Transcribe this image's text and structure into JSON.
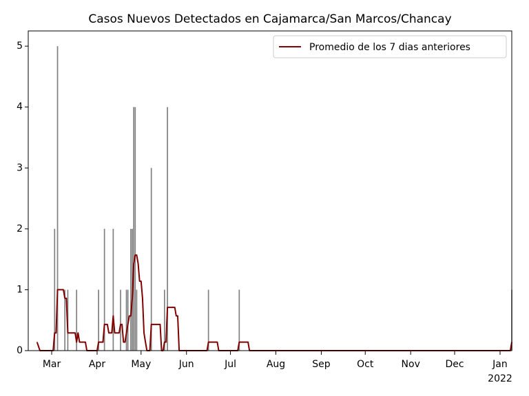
{
  "chart_data": {
    "type": "bar+line",
    "title": "Casos Nuevos Detectados en Cajamarca/San Marcos/Chancay",
    "xlim": [
      "2021-02-13",
      "2022-01-09"
    ],
    "xticks": [
      {
        "value": "2021-03-01",
        "label": "Mar"
      },
      {
        "value": "2021-04-01",
        "label": "Apr"
      },
      {
        "value": "2021-05-01",
        "label": "May"
      },
      {
        "value": "2021-06-01",
        "label": "Jun"
      },
      {
        "value": "2021-07-01",
        "label": "Jul"
      },
      {
        "value": "2021-08-01",
        "label": "Aug"
      },
      {
        "value": "2021-09-01",
        "label": "Sep"
      },
      {
        "value": "2021-10-01",
        "label": "Oct"
      },
      {
        "value": "2021-11-01",
        "label": "Nov"
      },
      {
        "value": "2021-12-01",
        "label": "Dec"
      },
      {
        "value": "2022-01-01",
        "label": "Jan"
      }
    ],
    "x_year_label": "2022",
    "ylim": [
      0,
      5.25
    ],
    "yticks": [
      0,
      1,
      2,
      3,
      4,
      5
    ],
    "legend": "upper right",
    "bars": {
      "color": "#808080",
      "x": [
        "2021-03-03",
        "2021-03-05",
        "2021-03-10",
        "2021-03-12",
        "2021-03-18",
        "2021-04-02",
        "2021-04-06",
        "2021-04-12",
        "2021-04-17",
        "2021-04-21",
        "2021-04-22",
        "2021-04-24",
        "2021-04-25",
        "2021-04-26",
        "2021-04-27",
        "2021-04-28",
        "2021-05-08",
        "2021-05-17",
        "2021-05-19",
        "2021-06-16",
        "2021-07-07",
        "2022-01-09"
      ],
      "values": [
        2,
        5,
        1,
        1,
        1,
        1,
        2,
        2,
        1,
        1,
        1,
        2,
        2,
        4,
        4,
        1,
        3,
        1,
        4,
        1,
        1,
        1
      ]
    },
    "line": {
      "name": "Promedio de los 7 dias anteriores",
      "color": "#800000",
      "x": [
        "2021-02-19",
        "2021-02-21",
        "2021-03-02",
        "2021-03-03",
        "2021-03-04",
        "2021-03-05",
        "2021-03-09",
        "2021-03-10",
        "2021-03-11",
        "2021-03-12",
        "2021-03-17",
        "2021-03-18",
        "2021-03-19",
        "2021-03-20",
        "2021-03-24",
        "2021-03-25",
        "2021-04-01",
        "2021-04-02",
        "2021-04-05",
        "2021-04-06",
        "2021-04-08",
        "2021-04-09",
        "2021-04-11",
        "2021-04-12",
        "2021-04-13",
        "2021-04-16",
        "2021-04-17",
        "2021-04-18",
        "2021-04-19",
        "2021-04-20",
        "2021-04-22",
        "2021-04-23",
        "2021-04-24",
        "2021-04-25",
        "2021-04-26",
        "2021-04-27",
        "2021-04-28",
        "2021-04-29",
        "2021-04-30",
        "2021-05-01",
        "2021-05-02",
        "2021-05-03",
        "2021-05-04",
        "2021-05-05",
        "2021-05-07",
        "2021-05-08",
        "2021-05-14",
        "2021-05-15",
        "2021-05-16",
        "2021-05-17",
        "2021-05-18",
        "2021-05-19",
        "2021-05-24",
        "2021-05-25",
        "2021-05-26",
        "2021-05-27",
        "2021-06-15",
        "2021-06-16",
        "2021-06-22",
        "2021-06-23",
        "2021-07-06",
        "2021-07-07",
        "2021-07-13",
        "2021-07-14",
        "2022-01-08",
        "2022-01-09"
      ],
      "values": [
        0.14,
        0,
        0,
        0.29,
        0.29,
        1,
        1,
        0.86,
        0.86,
        0.29,
        0.29,
        0.14,
        0.29,
        0.14,
        0.14,
        0,
        0,
        0.14,
        0.14,
        0.43,
        0.43,
        0.29,
        0.29,
        0.57,
        0.29,
        0.29,
        0.43,
        0.43,
        0.14,
        0.14,
        0.43,
        0.57,
        0.57,
        0.86,
        1.43,
        1.57,
        1.57,
        1.43,
        1.14,
        1.14,
        0.86,
        0.29,
        0.14,
        0,
        0,
        0.43,
        0.43,
        0,
        0,
        0.14,
        0.14,
        0.71,
        0.71,
        0.57,
        0.57,
        0,
        0,
        0.14,
        0.14,
        0,
        0,
        0.14,
        0.14,
        0,
        0,
        0.14
      ]
    }
  }
}
